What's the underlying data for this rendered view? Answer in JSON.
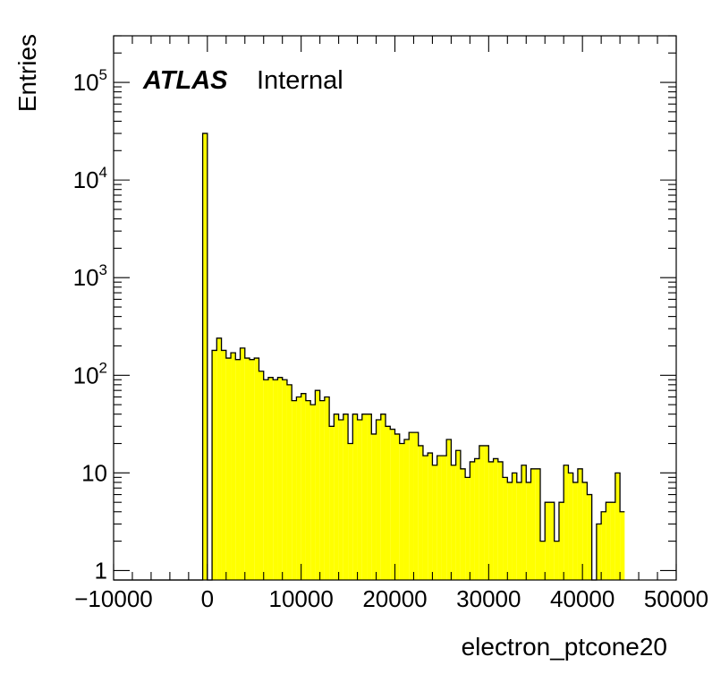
{
  "chart_data": {
    "type": "bar",
    "xlabel": "electron_ptcone20",
    "ylabel": "Entries",
    "label_bold": "ATLAS",
    "label_status": "Internal",
    "xlim": [
      -10000,
      50000
    ],
    "ylim": [
      0.8,
      300000
    ],
    "log_y": true,
    "x_ticks": [
      -10000,
      0,
      10000,
      20000,
      30000,
      40000,
      50000
    ],
    "x_tick_labels": [
      "−10000",
      "0",
      "10000",
      "20000",
      "30000",
      "40000",
      "50000"
    ],
    "y_ticks": [
      1,
      10,
      100,
      1000,
      10000,
      100000
    ],
    "y_tick_labels": [
      {
        "base": "1",
        "exp": ""
      },
      {
        "base": "10",
        "exp": ""
      },
      {
        "base": "10",
        "exp": "2"
      },
      {
        "base": "10",
        "exp": "3"
      },
      {
        "base": "10",
        "exp": "4"
      },
      {
        "base": "10",
        "exp": "5"
      }
    ],
    "bin_start": -10000,
    "bin_width": 500,
    "bin_contents": [
      0,
      0,
      0,
      0,
      0,
      0,
      0,
      0,
      0,
      0,
      0,
      0,
      0,
      0,
      0,
      0,
      0,
      0,
      0,
      30000,
      0,
      180,
      240,
      180,
      150,
      170,
      145,
      190,
      150,
      145,
      150,
      110,
      90,
      95,
      90,
      95,
      90,
      80,
      55,
      60,
      65,
      55,
      50,
      70,
      55,
      60,
      30,
      40,
      35,
      40,
      20,
      40,
      35,
      40,
      40,
      25,
      35,
      40,
      30,
      28,
      25,
      20,
      22,
      26,
      26,
      19,
      15,
      16,
      12,
      15,
      15,
      22,
      12,
      17,
      11,
      9,
      13,
      14,
      19,
      19,
      13,
      14,
      13,
      9,
      8,
      10,
      8,
      12,
      8,
      11,
      11,
      2,
      5,
      5,
      2,
      5,
      12,
      10,
      8,
      11,
      8,
      6,
      0,
      3,
      4,
      5,
      5,
      10,
      4
    ],
    "fill_color": "#ffff00",
    "line_color": "#000000"
  }
}
